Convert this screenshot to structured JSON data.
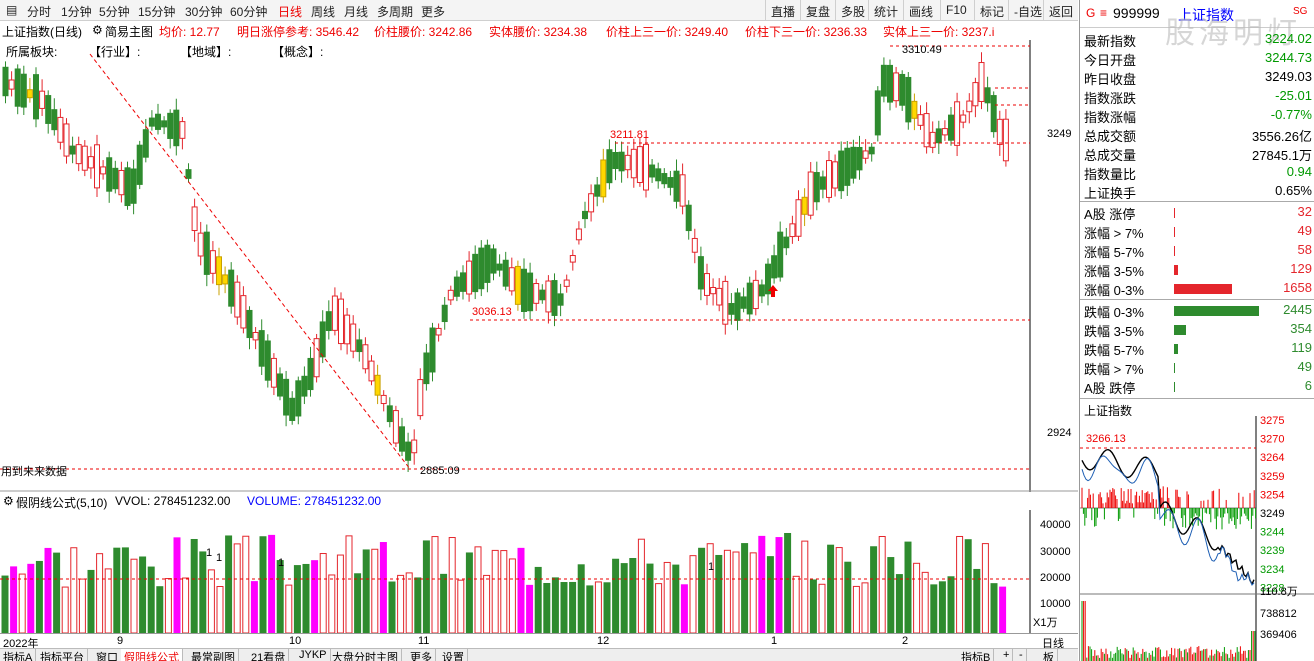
{
  "toolbar": {
    "periods": [
      "分时",
      "1分钟",
      "5分钟",
      "15分钟",
      "30分钟",
      "60分钟",
      "日线",
      "周线",
      "月线",
      "多周期",
      "更多"
    ],
    "active_period": "日线",
    "right_buttons": [
      "直播",
      "复盘",
      "多股",
      "统计",
      "画线",
      "F10",
      "标记",
      "-自选",
      "返回"
    ]
  },
  "info": {
    "chart_title": "上证指数(日线)",
    "main_indicator": "简易主图",
    "avg_label": "均价: 12.77",
    "limit_ref": "明日涨停参考: 3546.42",
    "col_waist": "价柱腰价: 3242.86",
    "body_waist": "实体腰价: 3234.38",
    "col_upper": "价柱上三一价: 3249.40",
    "col_lower": "价柱下三一价: 3236.33",
    "body_upper": "实体上三一价: 3237.i"
  },
  "sectors": {
    "label": "所属板块:",
    "industry": "【行业】:",
    "region": "【地域】:",
    "concept": "【概念】:"
  },
  "price_chart": {
    "levels": [
      "3249",
      "2924"
    ],
    "annot_high": "3310.49",
    "annot_mid_high": "3211.81",
    "annot_mid_low": "3036.13",
    "annot_low": "2885.09",
    "future_text": "用到未来数据"
  },
  "volume_panel": {
    "formula": "假阴线公式(5,10)",
    "vvol": "VVOL: 278451232.00",
    "volume": "VOLUME: 278451232.00",
    "levels": [
      "40000",
      "30000",
      "20000",
      "10000"
    ],
    "unit": "X1万",
    "markers": [
      "1",
      "1",
      "1",
      "1"
    ]
  },
  "date_axis": [
    "2022年",
    "9",
    "10",
    "11",
    "12",
    "1",
    "2"
  ],
  "date_axis_label": "日线",
  "quote": {
    "code": "999999",
    "name": "上证指数",
    "watermark": "股海明灯",
    "small_tag": "SG",
    "rows": [
      {
        "label": "最新指数",
        "value": "3224.02",
        "color": "grn"
      },
      {
        "label": "今日开盘",
        "value": "3244.73",
        "color": "grn"
      },
      {
        "label": "昨日收盘",
        "value": "3249.03",
        "color": "blk"
      },
      {
        "label": "指数涨跌",
        "value": "-25.01",
        "color": "grn"
      },
      {
        "label": "指数涨幅",
        "value": "-0.77%",
        "color": "grn"
      },
      {
        "label": "总成交额",
        "value": "3556.26亿",
        "color": "blk"
      },
      {
        "label": "总成交量",
        "value": "27845.1万",
        "color": "blk"
      },
      {
        "label": "指数量比",
        "value": "0.94",
        "color": "grn"
      },
      {
        "label": "上证换手",
        "value": "0.65%",
        "color": "blk"
      }
    ]
  },
  "breadth": {
    "up": [
      {
        "label": "A股 涨停",
        "value": "32",
        "bar": 0
      },
      {
        "label": "涨幅 > 7%",
        "value": "49",
        "bar": 0
      },
      {
        "label": "涨幅 5-7%",
        "value": "58",
        "bar": 0
      },
      {
        "label": "涨幅 3-5%",
        "value": "129",
        "bar": 129
      },
      {
        "label": "涨幅 0-3%",
        "value": "1658",
        "bar": 1658
      }
    ],
    "down": [
      {
        "label": "跌幅 0-3%",
        "value": "2445",
        "bar": 2445
      },
      {
        "label": "跌幅 3-5%",
        "value": "354",
        "bar": 354
      },
      {
        "label": "跌幅 5-7%",
        "value": "119",
        "bar": 119
      },
      {
        "label": "跌幅 > 7%",
        "value": "49",
        "bar": 0
      },
      {
        "label": "A股 跌停",
        "value": "6",
        "bar": 0
      }
    ]
  },
  "mini": {
    "title": "上证指数",
    "high_annot": "3266.13",
    "prices": [
      "3275",
      "3270",
      "3264",
      "3259",
      "3254",
      "3249",
      "3244",
      "3239",
      "3234",
      "3228"
    ],
    "vol_labels": [
      "110.8万",
      "738812",
      "369406"
    ]
  },
  "bottom_tabs": [
    "指标A",
    "指标平台",
    "窗口",
    "假阴线公式",
    "最常副图",
    "21看盘",
    "JYKP",
    "大盘分时主图",
    "更多",
    "设置"
  ],
  "bottom_active": "假阴线公式",
  "bottom_right": [
    "指标B",
    "+",
    "-",
    "板"
  ],
  "colors": {
    "up": "#e4262c",
    "down": "#2e8b2e",
    "yellow": "#ffd700",
    "magenta": "#ff00ff",
    "axis": "#000"
  }
}
